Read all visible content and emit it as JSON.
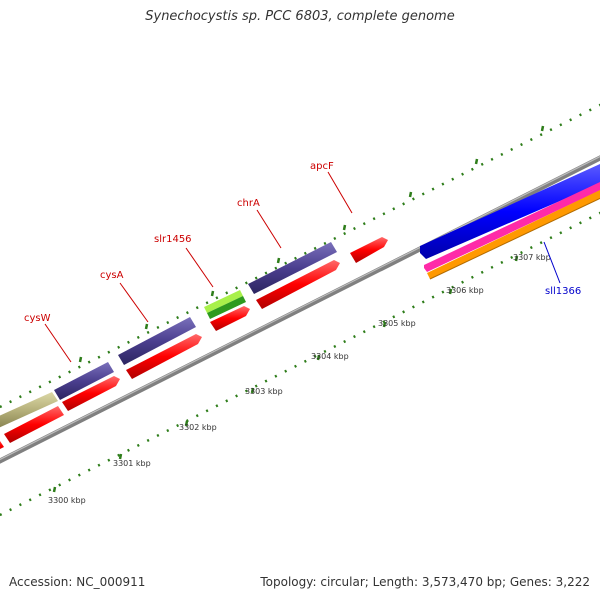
{
  "title": "Synechocystis sp. PCC 6803, complete genome",
  "footer": {
    "accession": "Accession: NC_000911",
    "summary": "Topology: circular; Length: 3,573,470 bp; Genes: 3,222"
  },
  "colors": {
    "backbone": "#808080",
    "tick": "#2e7d1a",
    "forward_label": "#cc0000",
    "reverse_label": "#0000cc",
    "cds_red": "#ff0000",
    "cds_purple": "#4b3f8f",
    "cds_olive": "#b5b07a",
    "cds_green": "#8ee23a",
    "cds_blue": "#0000ff",
    "cds_magenta": "#ff2aa8",
    "cds_orange": "#ff9900"
  },
  "ticks": [
    "3300 kbp",
    "3301 kbp",
    "3302 kbp",
    "3303 kbp",
    "3304 kbp",
    "3305 kbp",
    "3306 kbp",
    "3307 kbp"
  ],
  "gene_labels": [
    {
      "name": "cysW",
      "strand": "forward"
    },
    {
      "name": "cysA",
      "strand": "forward"
    },
    {
      "name": "slr1456",
      "strand": "forward"
    },
    {
      "name": "chrA",
      "strand": "forward"
    },
    {
      "name": "apcF",
      "strand": "forward"
    },
    {
      "name": "sll1366",
      "strand": "reverse"
    }
  ]
}
